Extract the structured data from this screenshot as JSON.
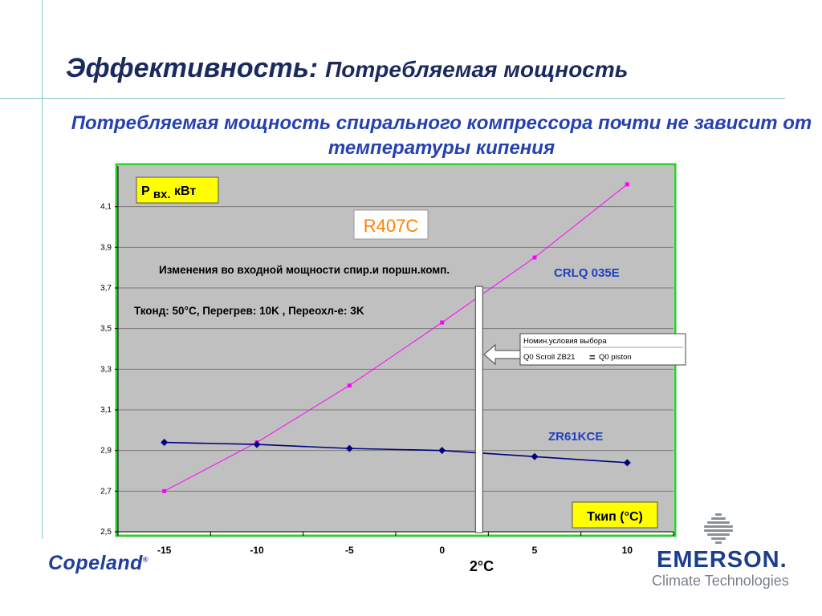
{
  "slide": {
    "title_main": "Эффективность:",
    "title_sub": "Потребляемая мощность",
    "subtitle": "Потребляемая мощность спирального компрессора почти не зависит от температуры кипения"
  },
  "chart_data": {
    "type": "line",
    "x": [
      -15,
      -10,
      -5,
      0,
      5,
      10
    ],
    "x_tick_labels": [
      "-15",
      "-10",
      "-5",
      "0",
      "5",
      "10"
    ],
    "y_tick_labels": [
      "4,1",
      "3,9",
      "3,7",
      "3,5",
      "3,3",
      "3,1",
      "2,9",
      "2,7",
      "2,5"
    ],
    "ylim": [
      2.5,
      4.3
    ],
    "ylabel": "P вх. кВт",
    "ylabel_parts": {
      "main": "P ",
      "sub": "вх.",
      "unit": " кВт"
    },
    "xlabel": "Ткип (°C)",
    "grid": "horizontal",
    "series": [
      {
        "name": "CRLQ 035E",
        "color": "#ff00ff",
        "marker": "square",
        "values": [
          2.7,
          2.94,
          3.22,
          3.53,
          3.85,
          4.21
        ]
      },
      {
        "name": "ZR61KCE",
        "color": "#000080",
        "marker": "diamond",
        "values": [
          2.94,
          2.93,
          2.91,
          2.9,
          2.87,
          2.84
        ]
      }
    ],
    "refrigerant": "R407C",
    "annotation_change": "Изменения во входной мощности спир.и поршн.комп.",
    "annotation_conditions": "Тконд: 50°C, Перегрев: 10K , Переохл-е: 3K",
    "nominal_box": {
      "line1": "Номин.условия выбора",
      "line2_left": "Q0 Scroll ZB21",
      "eq": "=",
      "line2_right": "Q0 piston"
    },
    "marker_x": 2,
    "marker_label": "2°C",
    "colors": {
      "plot_bg": "#c0c0c0",
      "plot_border": "#33cc33",
      "label_box": "#ffff00",
      "series_label": "#2040c0"
    }
  },
  "footer": {
    "copeland": "Copeland",
    "copeland_mark": "®",
    "emerson": "EMERSON",
    "emerson_tm": ".",
    "emerson_sub": "Climate Technologies"
  }
}
